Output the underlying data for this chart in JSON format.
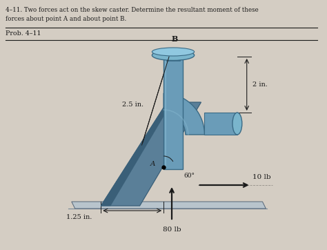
{
  "bg_color": "#d4cdc3",
  "title_line1": "4–11. Two forces act on the skew caster. Determine the resultant moment of these",
  "title_line2": "forces about point A and about point B.",
  "prob_label": "Prob. 4–11",
  "dim_25": "2.5 in.",
  "dim_2": "2 in.",
  "dim_125": "1.25 in.",
  "force_80": "80 lb",
  "force_10": "10 lb",
  "angle_label": "60°",
  "point_A": "A",
  "point_B": "B",
  "caster_color": "#6a9cb8",
  "caster_dark": "#3a6a85",
  "caster_light": "#8bbdd4",
  "plate_color": "#5a7f98",
  "plate_dark": "#3a5f78",
  "base_color": "#a0b8c8",
  "text_color": "#1a1a1a"
}
